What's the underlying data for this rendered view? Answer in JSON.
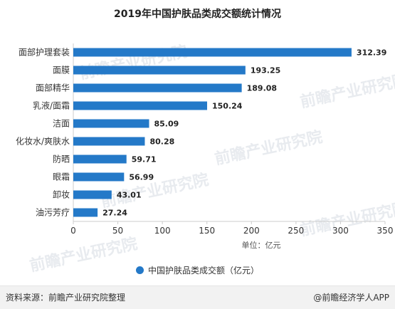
{
  "title": "2019年中国护肤品类成交额统计情况",
  "colors": {
    "bar": "#2479c8",
    "axis": "#cccccc",
    "text": "#333333"
  },
  "chart_data": {
    "type": "bar",
    "orientation": "horizontal",
    "categories": [
      "面部护理套装",
      "面膜",
      "面部精华",
      "乳液/面霜",
      "洁面",
      "化妆水/爽肤水",
      "防晒",
      "眼霜",
      "卸妆",
      "油污芳疗"
    ],
    "series": [
      {
        "name": "中国护肤品类成交额（亿元）",
        "values": [
          312.39,
          193.25,
          189.08,
          150.24,
          85.09,
          80.28,
          59.71,
          56.99,
          43.01,
          27.24
        ]
      }
    ],
    "value_labels": [
      "312.39",
      "193.25",
      "189.08",
      "150.24",
      "85.09",
      "80.28",
      "59.71",
      "56.99",
      "43.01",
      "27.24"
    ],
    "xlim": [
      0,
      350
    ],
    "xticks": [
      "0",
      "50",
      "100",
      "150",
      "200",
      "250",
      "300",
      "350"
    ],
    "xlabel": "单位：亿元",
    "ylabel": "",
    "grid": false,
    "legend": "bottom-center"
  },
  "watermark_text": "前瞻产业研究院",
  "footer": {
    "source": "资料来源：前瞻产业研究院整理",
    "brand": "@前瞻经济学人APP"
  }
}
